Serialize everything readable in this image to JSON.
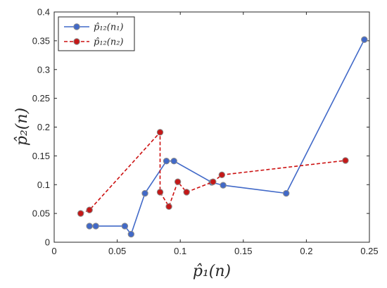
{
  "chart_data": {
    "type": "line",
    "xlabel": "p̂₁(n)",
    "ylabel": "p̂₂(n)",
    "xlim": [
      0,
      0.25
    ],
    "ylim": [
      0,
      0.4
    ],
    "xticks": [
      "0",
      "0.05",
      "0.1",
      "0.15",
      "0.2",
      "0.25"
    ],
    "yticks": [
      "0",
      "0.05",
      "0.1",
      "0.15",
      "0.2",
      "0.25",
      "0.3",
      "0.35",
      "0.4"
    ],
    "grid": false,
    "legend_position": "top-left",
    "series": [
      {
        "name": "p̂₁₂(n₁)",
        "color": "#4169c8",
        "marker_fill": "#4169c8",
        "line_style": "solid",
        "x": [
          0.028,
          0.033,
          0.056,
          0.061,
          0.072,
          0.089,
          0.095,
          0.125,
          0.134,
          0.184,
          0.246
        ],
        "y": [
          0.028,
          0.028,
          0.028,
          0.014,
          0.085,
          0.141,
          0.141,
          0.104,
          0.099,
          0.085,
          0.352
        ]
      },
      {
        "name": "p̂₁₂(n₂)",
        "color": "#cc1010",
        "marker_fill": "#c41818",
        "line_style": "dashed",
        "x": [
          0.021,
          0.028,
          0.084,
          0.084,
          0.091,
          0.098,
          0.105,
          0.126,
          0.133,
          0.231
        ],
        "y": [
          0.05,
          0.056,
          0.191,
          0.087,
          0.062,
          0.105,
          0.087,
          0.105,
          0.117,
          0.142
        ]
      }
    ]
  }
}
